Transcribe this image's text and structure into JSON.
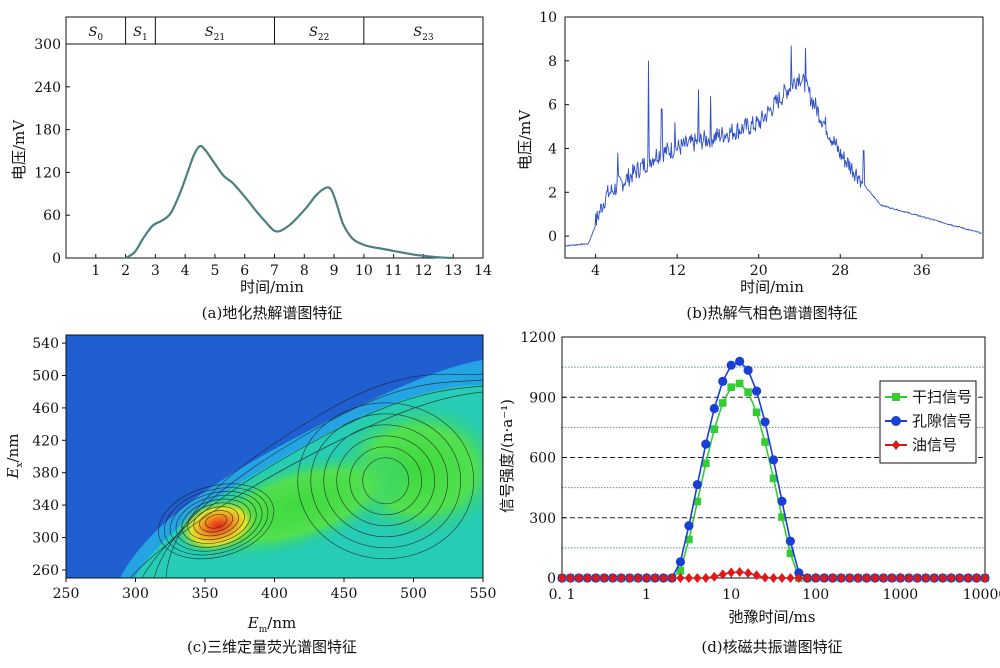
{
  "chart_data": [
    {
      "type": "line",
      "caption": "(a)地化热解谱图特征",
      "xlabel": "时间/min",
      "ylabel": "电压/mV",
      "xlim": [
        0,
        14
      ],
      "ylim": [
        0,
        300
      ],
      "xticks": [
        1,
        2,
        3,
        4,
        5,
        6,
        7,
        8,
        9,
        10,
        11,
        12,
        13,
        14
      ],
      "yticks": [
        0,
        60,
        120,
        180,
        240,
        300
      ],
      "stages": [
        {
          "label": "S",
          "sub": "0",
          "from": 0,
          "to": 2
        },
        {
          "label": "S",
          "sub": "1",
          "from": 2,
          "to": 3
        },
        {
          "label": "S",
          "sub": "21",
          "from": 3,
          "to": 7
        },
        {
          "label": "S",
          "sub": "22",
          "from": 7,
          "to": 10
        },
        {
          "label": "S",
          "sub": "23",
          "from": 10,
          "to": 14
        }
      ],
      "color": "#4a7f80",
      "series": [
        {
          "x": [
            2.0,
            2.3,
            2.6,
            2.9,
            3.2,
            3.5,
            3.8,
            4.1,
            4.3,
            4.5,
            4.7,
            5.0,
            5.3,
            5.6,
            6.0,
            6.4,
            6.8,
            7.0,
            7.2,
            7.5,
            7.8,
            8.1,
            8.4,
            8.7,
            8.9,
            9.1,
            9.3,
            9.6,
            9.9,
            10.2,
            10.6,
            11.0,
            11.5,
            12.0,
            12.5,
            13.0
          ],
          "y": [
            0,
            8,
            28,
            45,
            52,
            62,
            88,
            122,
            145,
            157,
            150,
            132,
            115,
            105,
            86,
            65,
            46,
            38,
            38,
            46,
            58,
            72,
            88,
            98,
            96,
            74,
            48,
            28,
            20,
            16,
            13,
            10,
            6,
            3,
            1,
            0
          ]
        }
      ]
    },
    {
      "type": "line",
      "caption": "(b)热解气相色谱谱图特征",
      "xlabel": "时间/min",
      "ylabel": "电压/mV",
      "xlim": [
        1,
        42
      ],
      "ylim": [
        -1,
        10
      ],
      "xticks": [
        4,
        12,
        20,
        28,
        36
      ],
      "yticks": [
        0,
        2,
        4,
        6,
        8,
        10
      ],
      "color": "#3050c8"
    },
    {
      "type": "heatmap",
      "caption": "(c)三维定量荧光谱图特征",
      "xlabel": {
        "main": "E",
        "sub": "m",
        "unit": "/nm"
      },
      "ylabel": {
        "main": "E",
        "sub": "x",
        "unit": "/nm"
      },
      "xlim": [
        250,
        550
      ],
      "ylim": [
        250,
        550
      ],
      "xticks": [
        250,
        300,
        350,
        400,
        450,
        500,
        550
      ],
      "yticks": [
        260,
        300,
        340,
        380,
        420,
        460,
        500,
        540
      ],
      "peaks": [
        {
          "x": 358,
          "y": 320,
          "level": 1.0
        },
        {
          "x": 480,
          "y": 370,
          "level": 0.55
        }
      ]
    },
    {
      "type": "line",
      "caption": "(d)核磁共振谱图特征",
      "xlabel": "弛豫时间/ms",
      "ylabel": "信号强度/(n·a⁻¹)",
      "xscale": "log",
      "xlim": [
        0.1,
        10000
      ],
      "ylim": [
        0,
        1200
      ],
      "xticks": [
        0.1,
        1,
        10,
        100,
        1000,
        10000
      ],
      "xticklabels": [
        "0. 1",
        "1",
        "10",
        "100",
        "1000",
        "10000"
      ],
      "yticks": [
        0,
        300,
        600,
        900,
        1200
      ],
      "legend": {
        "position": "right",
        "entries": [
          "干扫信号",
          "孔隙信号",
          "油信号"
        ]
      },
      "series": [
        {
          "name": "干扫信号",
          "color": "#33cc33",
          "marker": "square",
          "peak": 970,
          "center_log": 1.08,
          "width_log": 0.72
        },
        {
          "name": "孔隙信号",
          "color": "#1a3fd6",
          "marker": "circle",
          "peak": 1080,
          "center_log": 1.08,
          "width_log": 0.75
        },
        {
          "name": "油信号",
          "color": "#e01818",
          "marker": "diamond",
          "peak": 30,
          "center_log": 1.08,
          "width_log": 0.35
        }
      ]
    }
  ]
}
